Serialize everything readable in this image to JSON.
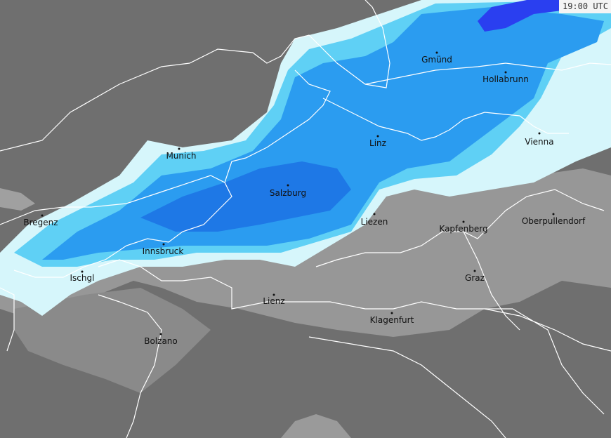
{
  "timestamp": "19:00 UTC",
  "colors": {
    "lowland": "#6f6f6f",
    "alps": "#979797",
    "precip_light": "#d6f6fb",
    "precip_cyan": "#5fd0f5",
    "precip_medium": "#2b9cf0",
    "precip_heavy": "#1e78e6",
    "precip_very_heavy": "#2a3ff0",
    "border": "#ffffff",
    "city_text": "#111111"
  },
  "cities": [
    {
      "name": "Gmünd"
    },
    {
      "name": "Hollabrunn"
    },
    {
      "name": "Linz"
    },
    {
      "name": "Vienna"
    },
    {
      "name": "Munich"
    },
    {
      "name": "Salzburg"
    },
    {
      "name": "Bregenz"
    },
    {
      "name": "Liezen"
    },
    {
      "name": "Kapfenberg"
    },
    {
      "name": "Oberpullendorf"
    },
    {
      "name": "Innsbruck"
    },
    {
      "name": "Ischgl"
    },
    {
      "name": "Graz"
    },
    {
      "name": "Lienz"
    },
    {
      "name": "Klagenfurt"
    },
    {
      "name": "Bolzano"
    }
  ]
}
